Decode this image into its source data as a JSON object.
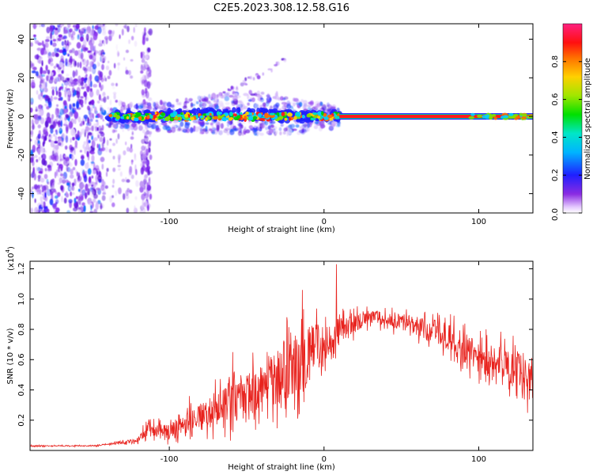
{
  "title": "C2E5.2023.308.12.58.G16",
  "colors": {
    "snr_line": "#e8231e",
    "spectrogram_low": "#7a1fe8",
    "spectrogram_band": "#ff1a1a"
  },
  "chart_data": [
    {
      "type": "heatmap",
      "name": "spectrogram",
      "xlabel": "Height of straight line (km)",
      "ylabel": "Frequency (Hz)",
      "xlim": [
        -190,
        135
      ],
      "ylim": [
        -50,
        48
      ],
      "x_ticks": [
        -100,
        0,
        100
      ],
      "x_tick_labels": [
        "-100",
        "0",
        "100"
      ],
      "y_ticks": [
        -40,
        -20,
        0,
        20,
        40
      ],
      "y_tick_labels": [
        "-40",
        "-20",
        "0",
        "20",
        "40"
      ],
      "colorbar": {
        "label": "Normalized spectral amplitude",
        "range": [
          0,
          1
        ],
        "ticks": [
          0,
          0.2,
          0.4,
          0.6,
          0.8
        ],
        "tick_labels": [
          "0.0",
          "0.2",
          "0.4",
          "0.6",
          "0.8"
        ],
        "colormap": "rainbow (purple-blue-cyan-green-yellow-red-magenta)"
      },
      "band": {
        "center_frequency": 0,
        "strong_from_x": 10,
        "strong_to_x": 135,
        "value": 0.9
      }
    },
    {
      "type": "line",
      "name": "snr",
      "xlabel": "Height of straight line (km)",
      "ylabel": "SNR (10 * v/v)",
      "y_multiplier_label": "(x10",
      "y_multiplier_exp": "4",
      "xlim": [
        -190,
        135
      ],
      "ylim": [
        0,
        1.25
      ],
      "x_ticks": [
        -100,
        0,
        100
      ],
      "x_tick_labels": [
        "-100",
        "0",
        "100"
      ],
      "y_ticks": [
        0.2,
        0.4,
        0.6,
        0.8,
        1.0,
        1.2
      ],
      "y_tick_labels": [
        "0.2",
        "0.4",
        "0.6",
        "0.8",
        "1.0",
        "1.2"
      ],
      "envelope": {
        "x": [
          -190,
          -150,
          -140,
          -120,
          -115,
          -100,
          -80,
          -60,
          -40,
          -25,
          -10,
          0,
          15,
          30,
          45,
          60,
          80,
          100,
          120,
          135
        ],
        "y_mean": [
          0.03,
          0.03,
          0.04,
          0.07,
          0.14,
          0.12,
          0.22,
          0.32,
          0.42,
          0.52,
          0.62,
          0.72,
          0.82,
          0.88,
          0.86,
          0.82,
          0.75,
          0.62,
          0.52,
          0.48
        ],
        "y_noise": [
          0.004,
          0.004,
          0.006,
          0.02,
          0.05,
          0.06,
          0.1,
          0.16,
          0.2,
          0.24,
          0.22,
          0.14,
          0.08,
          0.05,
          0.06,
          0.07,
          0.1,
          0.12,
          0.16,
          0.18
        ]
      },
      "spikes": [
        {
          "x": 8,
          "y": 1.23
        },
        {
          "x": -14,
          "y": 1.06
        },
        {
          "x": -24,
          "y": 0.88
        },
        {
          "x": -59,
          "y": 0.65
        },
        {
          "x": -87,
          "y": 0.36
        },
        {
          "x": -113,
          "y": 0.19
        }
      ]
    }
  ]
}
